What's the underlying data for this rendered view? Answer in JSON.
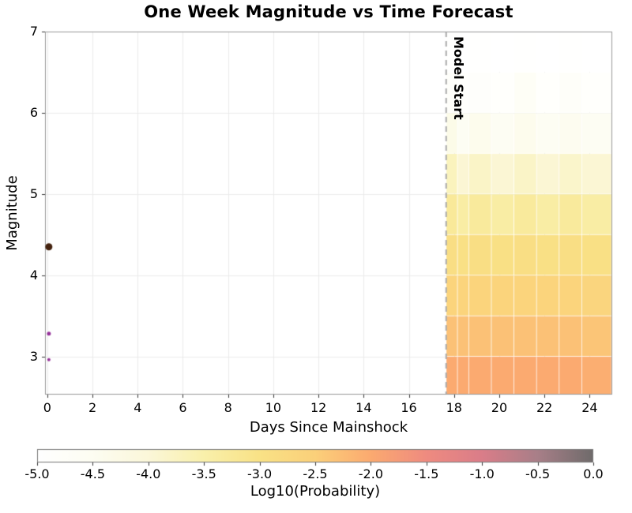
{
  "chart_data": {
    "type": "heatmap",
    "title": "One Week Magnitude vs Time Forecast",
    "xlabel": "Days Since Mainshock",
    "ylabel": "Magnitude",
    "xlim": [
      -0.1,
      25.0
    ],
    "ylim": [
      2.53,
      7.0
    ],
    "xticks": [
      0,
      2,
      4,
      6,
      8,
      10,
      12,
      14,
      16,
      18,
      20,
      22,
      24
    ],
    "yticks": [
      3,
      4,
      5,
      6,
      7
    ],
    "grid": true,
    "legend": "none",
    "model_start": {
      "label": "Model Start",
      "day": 17.65
    },
    "heatmap": {
      "col_edges_days": [
        17.65,
        18.15,
        18.65,
        19.65,
        20.65,
        21.65,
        22.65,
        23.65,
        24.97
      ],
      "row_edges_mag": [
        2.53,
        3.0,
        3.5,
        4.0,
        4.5,
        5.0,
        5.5,
        6.0,
        6.5,
        7.0
      ],
      "log10_prob_values_rows_bottom_to_top": [
        [
          -2.0,
          -2.0,
          -2.0,
          -2.0,
          -2.0,
          -2.0,
          -2.0,
          -2.05
        ],
        [
          -2.3,
          -2.3,
          -2.3,
          -2.3,
          -2.3,
          -2.3,
          -2.3,
          -2.35
        ],
        [
          -2.6,
          -2.6,
          -2.6,
          -2.6,
          -2.6,
          -2.6,
          -2.6,
          -2.65
        ],
        [
          -2.9,
          -2.95,
          -2.9,
          -2.95,
          -2.9,
          -2.95,
          -2.9,
          -2.95
        ],
        [
          -3.25,
          -3.4,
          -3.3,
          -3.4,
          -3.3,
          -3.4,
          -3.3,
          -3.4
        ],
        [
          -3.7,
          -3.95,
          -3.8,
          -3.95,
          -3.8,
          -3.95,
          -3.85,
          -3.95
        ],
        [
          -4.3,
          -4.55,
          -4.4,
          -4.55,
          -4.4,
          -4.55,
          -4.45,
          -4.55
        ],
        [
          -4.8,
          -4.9,
          -4.85,
          -4.9,
          -4.65,
          -4.9,
          -4.75,
          -4.9
        ],
        [
          -4.95,
          -5.0,
          -4.95,
          -5.0,
          -4.95,
          -5.0,
          -4.95,
          -5.0
        ]
      ]
    },
    "scatter_points": [
      {
        "day": 0.07,
        "magnitude": 4.35,
        "color": "#44220e",
        "radius": 4.5
      },
      {
        "day": 0.07,
        "magnitude": 3.28,
        "color": "#953299",
        "radius": 2.5
      },
      {
        "day": 0.07,
        "magnitude": 2.96,
        "color": "#953299",
        "radius": 2
      }
    ],
    "colorbar": {
      "label": "Log10(Probability)",
      "min": -5.0,
      "max": 0.0,
      "ticks": [
        -5.0,
        -4.5,
        -4.0,
        -3.5,
        -3.0,
        -2.5,
        -2.0,
        -1.5,
        -1.0,
        -0.5,
        0.0
      ],
      "tick_labels": [
        "-5.0",
        "-4.5",
        "-4.0",
        "-3.5",
        "-3.0",
        "-2.5",
        "-2.0",
        "-1.5",
        "-1.0",
        "-0.5",
        "0.0"
      ]
    },
    "colormap_stops": [
      [
        -5.0,
        "#ffffff"
      ],
      [
        -4.5,
        "#fdfdf2"
      ],
      [
        -4.0,
        "#fbf7d9"
      ],
      [
        -3.5,
        "#f9f0ab"
      ],
      [
        -3.0,
        "#f9e286"
      ],
      [
        -2.5,
        "#fbd07a"
      ],
      [
        -2.0,
        "#fbaa70"
      ],
      [
        -1.5,
        "#ef8b80"
      ],
      [
        -1.0,
        "#da7d89"
      ],
      [
        -0.5,
        "#a87f88"
      ],
      [
        0.0,
        "#6f6b6b"
      ]
    ],
    "colors": {
      "grid": "#ebebeb",
      "spine": "#999999",
      "tick": "#333333",
      "model_start_line": "#aaaaaa",
      "background": "#ffffff"
    }
  }
}
